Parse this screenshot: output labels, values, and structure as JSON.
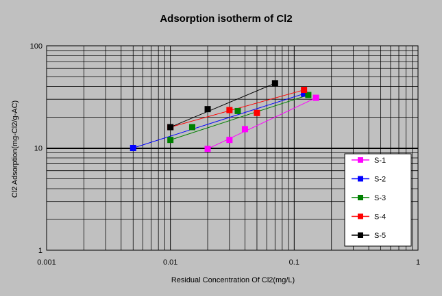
{
  "chart_data": {
    "type": "scatter",
    "title": "Adsorption isotherm of Cl2",
    "xlabel": "Residual Concentration Of Cl2(mg/L)",
    "ylabel": "Cl2 Adsorption(mg-Cl2/g-AC)",
    "xscale": "log",
    "yscale": "log",
    "xlim": [
      0.001,
      1
    ],
    "ylim": [
      1,
      100
    ],
    "x_ticks": [
      "0.001",
      "0.01",
      "0.1",
      "1"
    ],
    "y_ticks": [
      "1",
      "10",
      "100"
    ],
    "grid": true,
    "legend_position": "right",
    "series": [
      {
        "name": "S-1",
        "color": "#ff00ff",
        "x": [
          0.02,
          0.03,
          0.04,
          0.15
        ],
        "y": [
          9.8,
          12,
          15.3,
          31
        ],
        "fit": [
          [
            0.02,
            9.8
          ],
          [
            0.15,
            31
          ]
        ]
      },
      {
        "name": "S-2",
        "color": "#0000ff",
        "x": [
          0.005,
          0.015,
          0.12
        ],
        "y": [
          10,
          16,
          34
        ],
        "fit": [
          [
            0.005,
            10
          ],
          [
            0.12,
            34
          ]
        ]
      },
      {
        "name": "S-3",
        "color": "#008000",
        "x": [
          0.01,
          0.015,
          0.035,
          0.13
        ],
        "y": [
          12,
          16,
          23,
          33
        ],
        "fit": [
          [
            0.01,
            12
          ],
          [
            0.13,
            33
          ]
        ]
      },
      {
        "name": "S-4",
        "color": "#ff0000",
        "x": [
          0.01,
          0.03,
          0.05,
          0.12
        ],
        "y": [
          16,
          23.5,
          22,
          37
        ],
        "fit": [
          [
            0.01,
            16
          ],
          [
            0.12,
            37
          ]
        ]
      },
      {
        "name": "S-5",
        "color": "#000000",
        "x": [
          0.01,
          0.02,
          0.07
        ],
        "y": [
          16,
          24,
          43
        ],
        "fit": [
          [
            0.01,
            16
          ],
          [
            0.07,
            43
          ]
        ]
      }
    ]
  }
}
